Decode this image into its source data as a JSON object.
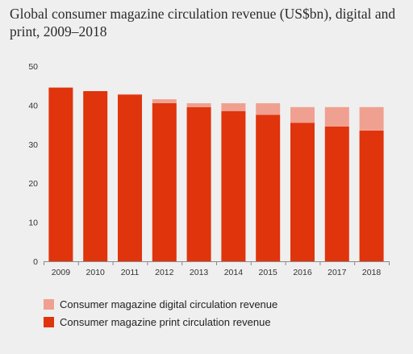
{
  "title": "Global consumer magazine circulation revenue (US$bn), digital and print, 2009–2018",
  "colors": {
    "print": "#e0340c",
    "digital": "#f0a090",
    "axis": "#8a8a8a",
    "background": "#efefef"
  },
  "chart_data": {
    "type": "bar",
    "stacked": true,
    "title": "Global consumer magazine circulation revenue (US$bn), digital and print, 2009–2018",
    "xlabel": "",
    "ylabel": "",
    "ylim": [
      0,
      50
    ],
    "yticks": [
      0,
      10,
      20,
      30,
      40,
      50
    ],
    "grid": false,
    "legend_position": "bottom-left",
    "categories": [
      "2009",
      "2010",
      "2011",
      "2012",
      "2013",
      "2014",
      "2015",
      "2016",
      "2017",
      "2018"
    ],
    "series": [
      {
        "name": "Consumer magazine print circulation revenue",
        "color": "#e0340c",
        "values": [
          44.5,
          43.6,
          42.7,
          40.5,
          39.5,
          38.5,
          37.5,
          35.5,
          34.5,
          33.5
        ]
      },
      {
        "name": "Consumer magazine digital circulation revenue",
        "color": "#f0a090",
        "values": [
          0.0,
          0.0,
          0.1,
          1.0,
          1.0,
          2.0,
          3.0,
          4.0,
          5.0,
          6.0
        ]
      }
    ]
  },
  "legend": [
    {
      "label": "Consumer magazine digital circulation revenue",
      "color": "#f0a090"
    },
    {
      "label": "Consumer magazine print circulation revenue",
      "color": "#e0340c"
    }
  ]
}
